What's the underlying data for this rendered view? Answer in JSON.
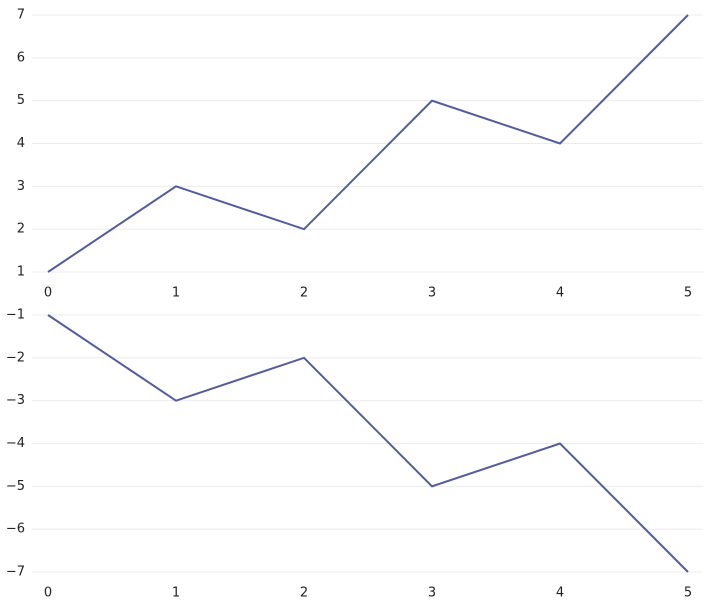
{
  "chart_data": [
    {
      "type": "line",
      "x": [
        0,
        1,
        2,
        3,
        4,
        5
      ],
      "series": [
        {
          "color": "#525c9e",
          "values": [
            1,
            3,
            2,
            5,
            4,
            7
          ]
        }
      ],
      "xlim": [
        0,
        5
      ],
      "xticks": [
        0,
        1,
        2,
        3,
        4,
        5
      ],
      "ylim": [
        1,
        7
      ],
      "yticks": [
        1,
        2,
        3,
        4,
        5,
        6,
        7
      ],
      "grid": true
    },
    {
      "type": "line",
      "x": [
        0,
        1,
        2,
        3,
        4,
        5
      ],
      "series": [
        {
          "color": "#525c9e",
          "values": [
            -1,
            -3,
            -2,
            -5,
            -4,
            -7
          ]
        }
      ],
      "xlim": [
        0,
        5
      ],
      "xticks": [
        0,
        1,
        2,
        3,
        4,
        5
      ],
      "ylim": [
        -7,
        -1
      ],
      "yticks": [
        {
          "value": -1,
          "label": "−1"
        },
        {
          "value": -2,
          "label": "−2"
        },
        {
          "value": -3,
          "label": "−3"
        },
        {
          "value": -4,
          "label": "−4"
        },
        {
          "value": -5,
          "label": "−5"
        },
        {
          "value": -6,
          "label": "−6"
        },
        {
          "value": -7,
          "label": "−7"
        }
      ],
      "grid": true
    }
  ]
}
